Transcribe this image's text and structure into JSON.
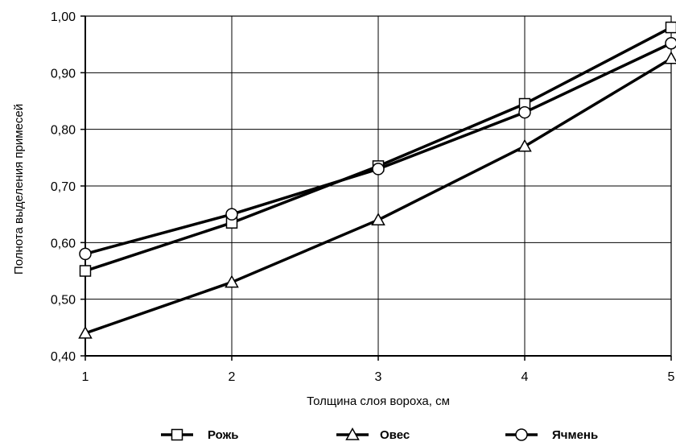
{
  "chart_data": {
    "type": "line",
    "xlabel": "Толщина слоя вороха, см",
    "ylabel": "Полнота выделения примесей",
    "x": [
      1,
      2,
      3,
      4,
      5
    ],
    "x_ticks": [
      "1",
      "2",
      "3",
      "4",
      "5"
    ],
    "xlim": [
      1,
      5
    ],
    "ylim": [
      0.4,
      1.0
    ],
    "y_ticks": [
      "0,40",
      "0,50",
      "0,60",
      "0,70",
      "0,80",
      "0,90",
      "1,00"
    ],
    "y_tick_values": [
      0.4,
      0.5,
      0.6,
      0.7,
      0.8,
      0.9,
      1.0
    ],
    "grid": true,
    "legend_position": "bottom",
    "series": [
      {
        "name": "Рожь",
        "marker": "square",
        "values": [
          0.55,
          0.635,
          0.735,
          0.845,
          0.98
        ]
      },
      {
        "name": "Овес",
        "marker": "triangle",
        "values": [
          0.44,
          0.53,
          0.64,
          0.77,
          0.925
        ]
      },
      {
        "name": "Ячмень",
        "marker": "circle",
        "values": [
          0.58,
          0.65,
          0.73,
          0.83,
          0.952
        ]
      }
    ]
  }
}
